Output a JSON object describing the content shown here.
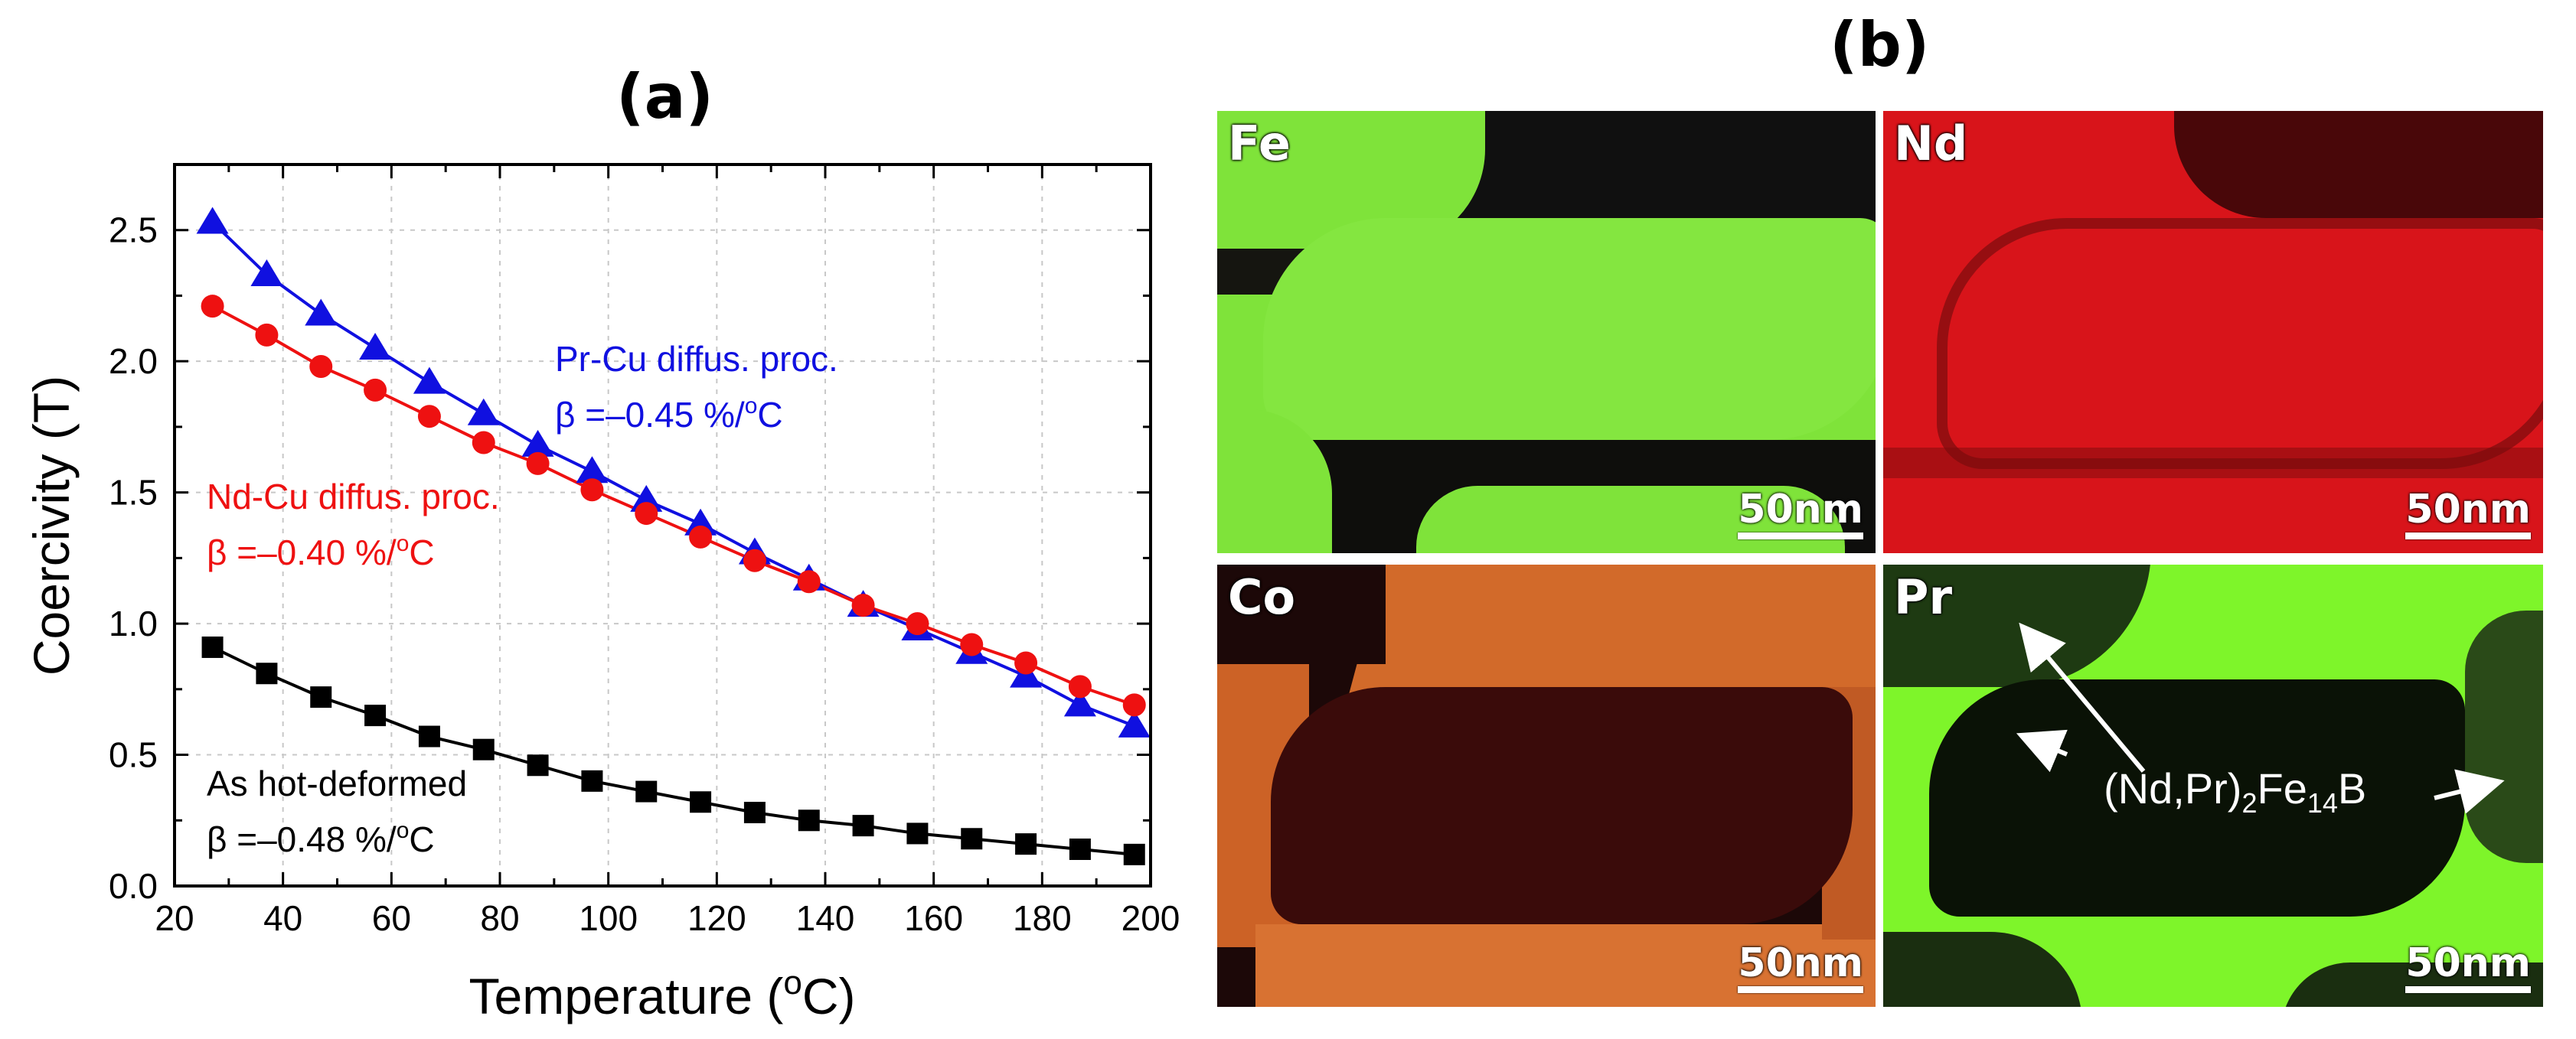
{
  "panel_a_label": "(a)",
  "panel_b_label": "(b)",
  "chart_data": {
    "type": "line",
    "title": "(a)",
    "xlabel": "Temperature (oC)",
    "ylabel": "Coercivity (T)",
    "xlim": [
      20,
      200
    ],
    "ylim": [
      0,
      2.75
    ],
    "xticks": [
      20,
      40,
      60,
      80,
      100,
      120,
      140,
      160,
      180,
      200
    ],
    "yticks": [
      0.0,
      0.5,
      1.0,
      1.5,
      2.0,
      2.5
    ],
    "ytick_labels": [
      "0.0",
      "0.5",
      "1.0",
      "1.5",
      "2.0",
      "2.5"
    ],
    "grid": true,
    "x": [
      27,
      37,
      47,
      57,
      67,
      77,
      87,
      97,
      107,
      117,
      127,
      137,
      147,
      157,
      167,
      177,
      187,
      197
    ],
    "series": [
      {
        "name": "Pr-Cu diffus. proc.",
        "beta": "β =–0.45 %/oC",
        "color": "#1010e0",
        "marker": "triangle",
        "values": [
          2.53,
          2.33,
          2.18,
          2.05,
          1.92,
          1.8,
          1.68,
          1.58,
          1.47,
          1.38,
          1.27,
          1.17,
          1.07,
          0.98,
          0.89,
          0.8,
          0.69,
          0.61
        ]
      },
      {
        "name": "Nd-Cu diffus. proc.",
        "beta": "β =–0.40 %/oC",
        "color": "#ee1111",
        "marker": "circle",
        "values": [
          2.21,
          2.1,
          1.98,
          1.89,
          1.79,
          1.69,
          1.61,
          1.51,
          1.42,
          1.33,
          1.24,
          1.16,
          1.07,
          1.0,
          0.92,
          0.85,
          0.76,
          0.69
        ]
      },
      {
        "name": "As hot-deformed",
        "beta": "β =–0.48 %/oC",
        "color": "#000000",
        "marker": "square",
        "values": [
          0.91,
          0.81,
          0.72,
          0.65,
          0.57,
          0.52,
          0.46,
          0.4,
          0.36,
          0.32,
          0.28,
          0.25,
          0.23,
          0.2,
          0.18,
          0.16,
          0.14,
          0.12
        ]
      }
    ]
  },
  "maps": [
    {
      "element": "Fe",
      "scale": "50nm",
      "color": "#7fe33a"
    },
    {
      "element": "Nd",
      "scale": "50nm",
      "color": "#d8141a"
    },
    {
      "element": "Co",
      "scale": "50nm",
      "color": "#c8581c"
    },
    {
      "element": "Pr",
      "scale": "50nm",
      "color": "#7ef52a"
    }
  ],
  "pr_annotation": "(Nd,Pr)",
  "pr_annotation_sub1": "2",
  "pr_annotation_mid": "Fe",
  "pr_annotation_sub2": "14",
  "pr_annotation_end": "B"
}
